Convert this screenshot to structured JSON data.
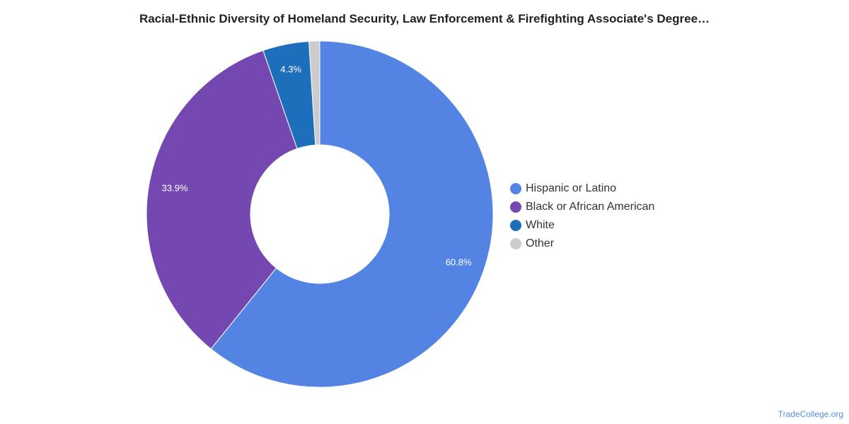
{
  "chart_data": {
    "type": "pie",
    "variant": "donut",
    "title": "Racial-Ethnic Diversity of Homeland Security, Law Enforcement & Firefighting Associate's Degree…",
    "categories": [
      "Hispanic or Latino",
      "Black or African American",
      "White",
      "Other"
    ],
    "values": [
      60.8,
      33.9,
      4.3,
      1.0
    ],
    "labels": [
      "60.8%",
      "33.9%",
      "4.3%",
      ""
    ],
    "colors": [
      "#5384e3",
      "#7448b0",
      "#1e6fbb",
      "#cccccc"
    ],
    "legend_position": "right"
  },
  "footer": {
    "source": "TradeCollege.org"
  }
}
